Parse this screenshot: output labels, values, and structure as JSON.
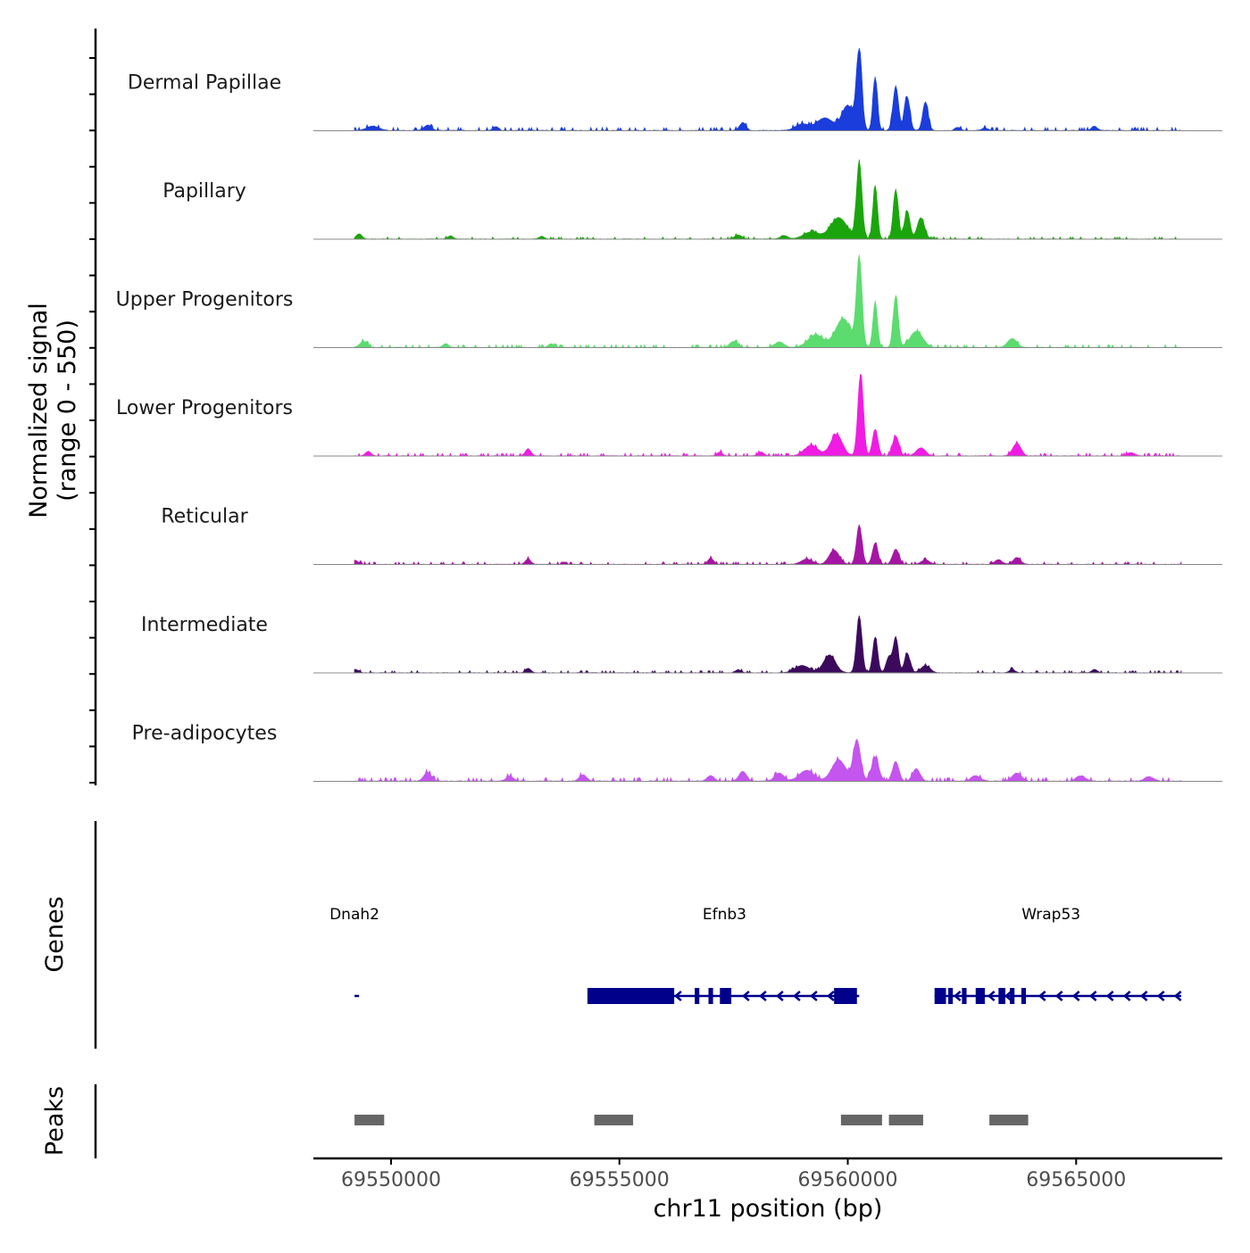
{
  "chart_data": {
    "type": "area",
    "title": "",
    "ylabel_line1": "Normalized signal",
    "ylabel_line2": "(range 0 - 550)",
    "y_range": [
      0,
      550
    ],
    "xlabel": "chr11 position (bp)",
    "chromosome": "chr11",
    "x_range": [
      69548300,
      69568200
    ],
    "x_ticks": [
      69550000,
      69555000,
      69560000,
      69565000
    ],
    "x_tick_labels": [
      "69550000",
      "69555000",
      "69560000",
      "69565000"
    ],
    "track_labels": {
      "genes": "Genes",
      "peaks": "Peaks"
    },
    "baseline_color": "#888888",
    "series": [
      {
        "name": "Dermal Papillae",
        "color": "#1A3DDB",
        "peaks": [
          [
            69560250,
            440,
            60
          ],
          [
            69560600,
            300,
            50
          ],
          [
            69561050,
            250,
            60
          ],
          [
            69561300,
            190,
            60
          ],
          [
            69561700,
            160,
            60
          ],
          [
            69560000,
            140,
            130
          ],
          [
            69559500,
            70,
            180
          ],
          [
            69559000,
            35,
            150
          ],
          [
            69557700,
            45,
            70
          ],
          [
            69549600,
            25,
            130
          ],
          [
            69550800,
            30,
            80
          ],
          [
            69552300,
            22,
            60
          ],
          [
            69565400,
            25,
            60
          ],
          [
            69562400,
            18,
            60
          ],
          [
            69563000,
            14,
            60
          ]
        ],
        "noise": 12
      },
      {
        "name": "Papillary",
        "color": "#1BA50C",
        "peaks": [
          [
            69560250,
            430,
            60
          ],
          [
            69560600,
            300,
            50
          ],
          [
            69561050,
            280,
            55
          ],
          [
            69561300,
            160,
            60
          ],
          [
            69561600,
            120,
            80
          ],
          [
            69559800,
            120,
            180
          ],
          [
            69559200,
            40,
            170
          ],
          [
            69549300,
            30,
            60
          ],
          [
            69557600,
            22,
            80
          ],
          [
            69558600,
            20,
            80
          ],
          [
            69551300,
            18,
            60
          ],
          [
            69553300,
            15,
            60
          ]
        ],
        "noise": 8
      },
      {
        "name": "Upper Progenitors",
        "color": "#5CDC6E",
        "peaks": [
          [
            69560250,
            500,
            60
          ],
          [
            69560600,
            250,
            50
          ],
          [
            69561050,
            290,
            55
          ],
          [
            69559900,
            160,
            170
          ],
          [
            69561500,
            90,
            140
          ],
          [
            69559300,
            70,
            170
          ],
          [
            69563600,
            50,
            100
          ],
          [
            69549400,
            35,
            80
          ],
          [
            69557500,
            35,
            80
          ],
          [
            69558500,
            30,
            100
          ],
          [
            69551200,
            22,
            60
          ],
          [
            69553500,
            20,
            60
          ]
        ],
        "noise": 10
      },
      {
        "name": "Lower Progenitors",
        "color": "#F01CE3",
        "peaks": [
          [
            69560280,
            460,
            60
          ],
          [
            69560600,
            150,
            60
          ],
          [
            69561050,
            110,
            70
          ],
          [
            69559750,
            120,
            130
          ],
          [
            69559200,
            60,
            150
          ],
          [
            69561600,
            45,
            100
          ],
          [
            69563700,
            70,
            90
          ],
          [
            69553000,
            40,
            60
          ],
          [
            69549500,
            25,
            60
          ],
          [
            69557200,
            22,
            60
          ],
          [
            69558100,
            22,
            60
          ],
          [
            69566200,
            18,
            80
          ]
        ],
        "noise": 10
      },
      {
        "name": "Reticular",
        "color": "#A515A4",
        "peaks": [
          [
            69560250,
            220,
            60
          ],
          [
            69560600,
            120,
            60
          ],
          [
            69561050,
            85,
            70
          ],
          [
            69559700,
            80,
            110
          ],
          [
            69559100,
            30,
            120
          ],
          [
            69557000,
            35,
            60
          ],
          [
            69553000,
            30,
            60
          ],
          [
            69563700,
            38,
            80
          ],
          [
            69563300,
            25,
            80
          ],
          [
            69549200,
            22,
            80
          ],
          [
            69561700,
            25,
            90
          ]
        ],
        "noise": 9
      },
      {
        "name": "Intermediate",
        "color": "#3C0A5D",
        "peaks": [
          [
            69560250,
            320,
            60
          ],
          [
            69560600,
            200,
            55
          ],
          [
            69561050,
            200,
            55
          ],
          [
            69561300,
            110,
            60
          ],
          [
            69560900,
            90,
            60
          ],
          [
            69559600,
            100,
            130
          ],
          [
            69559000,
            40,
            160
          ],
          [
            69561700,
            40,
            100
          ],
          [
            69549200,
            20,
            80
          ],
          [
            69553000,
            25,
            60
          ],
          [
            69563600,
            20,
            60
          ],
          [
            69565400,
            18,
            60
          ],
          [
            69557600,
            18,
            60
          ]
        ],
        "noise": 8
      },
      {
        "name": "Pre-adipocytes",
        "color": "#C455EE",
        "peaks": [
          [
            69560200,
            230,
            80
          ],
          [
            69560600,
            130,
            80
          ],
          [
            69559800,
            120,
            150
          ],
          [
            69561050,
            110,
            70
          ],
          [
            69561500,
            70,
            80
          ],
          [
            69559100,
            60,
            160
          ],
          [
            69558500,
            45,
            100
          ],
          [
            69557700,
            55,
            80
          ],
          [
            69550800,
            50,
            80
          ],
          [
            69554200,
            35,
            80
          ],
          [
            69552600,
            28,
            80
          ],
          [
            69557000,
            30,
            80
          ],
          [
            69563700,
            45,
            100
          ],
          [
            69565100,
            30,
            100
          ],
          [
            69566600,
            25,
            100
          ],
          [
            69562800,
            30,
            100
          ]
        ],
        "noise": 13
      }
    ],
    "genes": [
      {
        "name": "Dnah2",
        "start": 69549200,
        "end": 69549300,
        "strand": "-",
        "exons": [],
        "label_x": 69549200
      },
      {
        "name": "Efnb3",
        "start": 69554300,
        "end": 69560250,
        "strand": "-",
        "exons": [
          [
            69554300,
            69556200
          ],
          [
            69556650,
            69556750
          ],
          [
            69556950,
            69557050
          ],
          [
            69557200,
            69557450
          ],
          [
            69559700,
            69560200
          ]
        ],
        "label_x": 69557300
      },
      {
        "name": "Wrap53",
        "start": 69561900,
        "end": 69567300,
        "strand": "-",
        "exons": [
          [
            69561900,
            69562150
          ],
          [
            69562200,
            69562300
          ],
          [
            69562500,
            69562600
          ],
          [
            69562800,
            69563000
          ],
          [
            69563300,
            69563450
          ],
          [
            69563550,
            69563650
          ],
          [
            69563800,
            69563900
          ]
        ],
        "label_x": 69564450
      }
    ],
    "gene_color": "#00008B",
    "peaks": [
      [
        69549200,
        69549850
      ],
      [
        69554450,
        69555300
      ],
      [
        69559850,
        69560750
      ],
      [
        69560900,
        69561650
      ],
      [
        69563100,
        69563950
      ]
    ],
    "peak_color": "#666666"
  }
}
